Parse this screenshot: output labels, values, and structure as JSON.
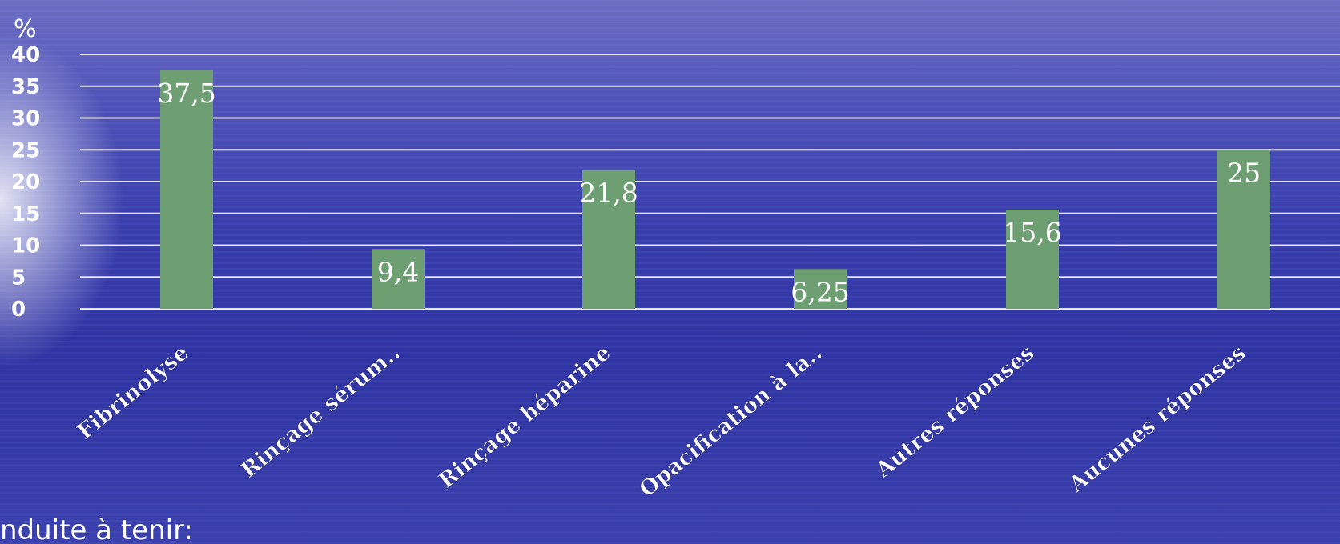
{
  "chart_data": {
    "type": "bar",
    "ylabel": "%",
    "ylim": [
      0,
      40
    ],
    "yticks": [
      0,
      5,
      10,
      15,
      20,
      25,
      30,
      35,
      40
    ],
    "categories": [
      "Fibrinolyse",
      "Rinçage sérum..",
      "Rinçage héparine",
      "Opacification à la..",
      "Autres réponses",
      "Aucunes réponses"
    ],
    "values": [
      37.5,
      9.4,
      21.8,
      6.25,
      15.6,
      25
    ],
    "data_labels": [
      "37,5",
      "9,4",
      "21,8",
      "6,25",
      "15,6",
      "25"
    ],
    "grid": true,
    "legend": "none",
    "bar_color": "#6e9f73",
    "grid_color": "#e8e8f4"
  },
  "footer_text": "nduite à tenir:"
}
